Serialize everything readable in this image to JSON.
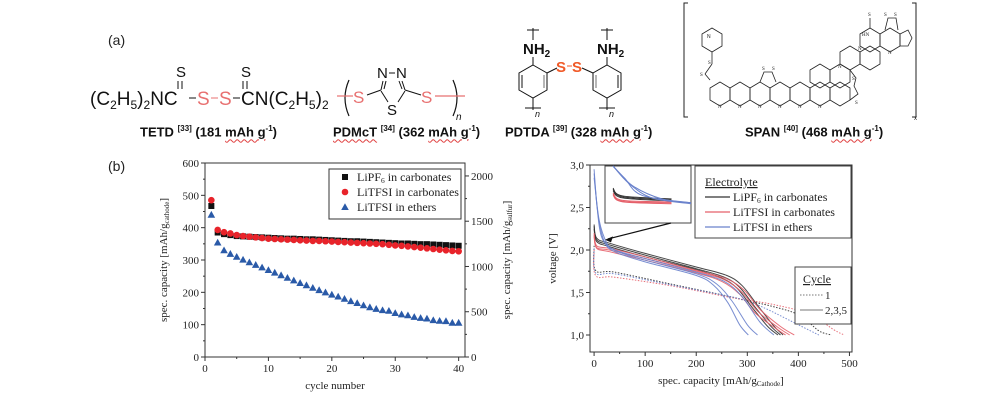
{
  "panel_a": {
    "label": "(a)",
    "molecules": [
      {
        "name": "TETD",
        "ref": "[33]",
        "capacity": "181",
        "unit": "mAh g",
        "exp": "-1",
        "formula_left": "(C2H5)2NC",
        "formula_right": "CN(C2H5)2",
        "atoms": [
          "S",
          "S",
          "S",
          "S"
        ]
      },
      {
        "name": "PDMcT",
        "ref": "[34]",
        "capacity": "362",
        "unit": "mAh g",
        "exp": "-1",
        "atoms": [
          "N",
          "N",
          "S",
          "S",
          "S"
        ],
        "subscript": "n"
      },
      {
        "name": "PDTDA",
        "ref": "[39]",
        "capacity": "328",
        "unit": "mAh g",
        "exp": "-1",
        "atoms": [
          "NH2",
          "NH2",
          "S",
          "S"
        ],
        "subscript": "n"
      },
      {
        "name": "SPAN",
        "ref": "[40]",
        "capacity": "468",
        "unit": "mAh g",
        "exp": "-1"
      }
    ],
    "highlight_color": "#e87070",
    "pdtda_highlight_color": "#f05a28"
  },
  "panel_b": {
    "label": "(b)"
  },
  "chart_data": [
    {
      "type": "scatter",
      "title": "",
      "xlabel": "cycle number",
      "ylabel": "spec. capacity [mAh/g",
      "ylabel_sub": "cathode",
      "ylabel2": "spec. capacity [mAh/g",
      "ylabel2_sub": "sulfur",
      "xlim": [
        0,
        41
      ],
      "ylim": [
        0,
        600
      ],
      "ylim2": [
        0,
        2143
      ],
      "xticks": [
        0,
        10,
        20,
        30,
        40
      ],
      "yticks": [
        0,
        100,
        200,
        300,
        400,
        500,
        600
      ],
      "y2ticks": [
        0,
        500,
        1000,
        1500,
        2000
      ],
      "legend_position": "top-right",
      "grid": false,
      "x": [
        1,
        2,
        3,
        4,
        5,
        6,
        7,
        8,
        9,
        10,
        11,
        12,
        13,
        14,
        15,
        16,
        17,
        18,
        19,
        20,
        21,
        22,
        23,
        24,
        25,
        26,
        27,
        28,
        29,
        30,
        31,
        32,
        33,
        34,
        35,
        36,
        37,
        38,
        39,
        40
      ],
      "series": [
        {
          "name": "LiPF6 in carbonates",
          "label_main": "LiPF",
          "label_sub": "6",
          "label_rest": " in carbonates",
          "marker": "square",
          "color": "#111111",
          "values": [
            467,
            385,
            380,
            377,
            374,
            373,
            372,
            371,
            370,
            369,
            368,
            367,
            366,
            366,
            365,
            364,
            364,
            363,
            362,
            361,
            360,
            359,
            358,
            358,
            357,
            356,
            355,
            354,
            353,
            352,
            351,
            351,
            350,
            349,
            349,
            348,
            347,
            346,
            345,
            344
          ]
        },
        {
          "name": "LiTFSI in carbonates",
          "label_main": "LiTFSI in carbonates",
          "marker": "circle",
          "color": "#e8232a",
          "values": [
            485,
            393,
            386,
            382,
            377,
            374,
            372,
            370,
            368,
            366,
            365,
            364,
            363,
            362,
            361,
            360,
            359,
            359,
            358,
            357,
            356,
            355,
            354,
            353,
            352,
            351,
            350,
            349,
            347,
            345,
            344,
            342,
            340,
            338,
            336,
            334,
            332,
            330,
            328,
            327
          ]
        },
        {
          "name": "LiTFSI in ethers",
          "label_main": "LiTFSI in ethers",
          "marker": "triangle",
          "color": "#2a5aa8",
          "values": [
            440,
            354,
            330,
            319,
            310,
            301,
            293,
            285,
            277,
            269,
            261,
            253,
            245,
            237,
            229,
            222,
            214,
            207,
            200,
            193,
            187,
            180,
            173,
            167,
            160,
            154,
            149,
            145,
            143,
            136,
            132,
            129,
            124,
            121,
            119,
            114,
            112,
            111,
            106,
            106
          ]
        }
      ]
    },
    {
      "type": "line",
      "title": "",
      "xlabel": "spec. capacity [mAh/g",
      "xlabel_sub": "Cathode",
      "ylabel": "voltage [V]",
      "xlim": [
        -8,
        505
      ],
      "ylim": [
        0.8,
        3.0
      ],
      "xticks": [
        0,
        100,
        200,
        300,
        400,
        500
      ],
      "yticks": [
        1.0,
        1.5,
        2.0,
        2.5,
        3.0
      ],
      "ytick_labels": [
        "1,0",
        "1,5",
        "2,0",
        "2,5",
        "3,0"
      ],
      "legend_position": "top-right",
      "legend_electrolyte_title": "Electrolyte",
      "legend_cycle_title": "Cycle",
      "grid": false,
      "electrolytes": [
        {
          "name": "LiPF6 in carbonates",
          "label_main": "LiPF",
          "label_sub": "6",
          "label_rest": " in carbonates",
          "color": "#333333"
        },
        {
          "name": "LiTFSI in carbonates",
          "label_main": "LiTFSI in carbonates",
          "color": "#e5606a"
        },
        {
          "name": "LiTFSI in ethers",
          "label_main": "LiTFSI in ethers",
          "color": "#6a82cc"
        }
      ],
      "cycles": [
        {
          "name": "1",
          "style": "dotted"
        },
        {
          "name": "2,3,5",
          "style": "solid"
        }
      ],
      "series": [
        {
          "electrolyte": 0,
          "cycle": "1",
          "points": [
            [
              0,
              2.05
            ],
            [
              3,
              1.76
            ],
            [
              40,
              1.74
            ],
            [
              150,
              1.6
            ],
            [
              260,
              1.46
            ],
            [
              300,
              1.4
            ],
            [
              340,
              1.35
            ],
            [
              400,
              1.24
            ],
            [
              440,
              1.05
            ],
            [
              465,
              1.0
            ]
          ]
        },
        {
          "electrolyte": 1,
          "cycle": "1",
          "points": [
            [
              0,
              2.0
            ],
            [
              3,
              1.7
            ],
            [
              40,
              1.68
            ],
            [
              150,
              1.58
            ],
            [
              260,
              1.45
            ],
            [
              300,
              1.41
            ],
            [
              350,
              1.36
            ],
            [
              420,
              1.25
            ],
            [
              470,
              1.06
            ],
            [
              490,
              1.0
            ]
          ]
        },
        {
          "electrolyte": 2,
          "cycle": "1",
          "points": [
            [
              0,
              2.02
            ],
            [
              3,
              1.73
            ],
            [
              40,
              1.72
            ],
            [
              150,
              1.59
            ],
            [
              260,
              1.46
            ],
            [
              300,
              1.4
            ],
            [
              340,
              1.3
            ],
            [
              400,
              1.12
            ],
            [
              440,
              1.0
            ]
          ]
        },
        {
          "electrolyte": 0,
          "cycle": "2",
          "points": [
            [
              0,
              2.3
            ],
            [
              5,
              2.14
            ],
            [
              30,
              2.08
            ],
            [
              100,
              1.96
            ],
            [
              200,
              1.8
            ],
            [
              260,
              1.7
            ],
            [
              290,
              1.58
            ],
            [
              320,
              1.35
            ],
            [
              350,
              1.12
            ],
            [
              370,
              1.0
            ]
          ]
        },
        {
          "electrolyte": 0,
          "cycle": "3",
          "points": [
            [
              0,
              2.28
            ],
            [
              5,
              2.12
            ],
            [
              30,
              2.06
            ],
            [
              100,
              1.94
            ],
            [
              200,
              1.78
            ],
            [
              255,
              1.68
            ],
            [
              285,
              1.56
            ],
            [
              315,
              1.33
            ],
            [
              345,
              1.11
            ],
            [
              365,
              1.0
            ]
          ]
        },
        {
          "electrolyte": 0,
          "cycle": "5",
          "points": [
            [
              0,
              2.25
            ],
            [
              5,
              2.1
            ],
            [
              30,
              2.04
            ],
            [
              100,
              1.92
            ],
            [
              200,
              1.77
            ],
            [
              250,
              1.67
            ],
            [
              280,
              1.55
            ],
            [
              310,
              1.32
            ],
            [
              340,
              1.1
            ],
            [
              360,
              1.0
            ]
          ]
        },
        {
          "electrolyte": 1,
          "cycle": "2",
          "points": [
            [
              0,
              2.2
            ],
            [
              5,
              2.05
            ],
            [
              30,
              2.02
            ],
            [
              100,
              1.92
            ],
            [
              200,
              1.76
            ],
            [
              260,
              1.66
            ],
            [
              295,
              1.52
            ],
            [
              325,
              1.3
            ],
            [
              365,
              1.1
            ],
            [
              392,
              1.0
            ]
          ]
        },
        {
          "electrolyte": 1,
          "cycle": "3",
          "points": [
            [
              0,
              2.18
            ],
            [
              5,
              2.03
            ],
            [
              30,
              2.0
            ],
            [
              100,
              1.9
            ],
            [
              200,
              1.75
            ],
            [
              255,
              1.65
            ],
            [
              290,
              1.5
            ],
            [
              320,
              1.28
            ],
            [
              360,
              1.09
            ],
            [
              383,
              1.0
            ]
          ]
        },
        {
          "electrolyte": 1,
          "cycle": "5",
          "points": [
            [
              0,
              2.16
            ],
            [
              5,
              2.02
            ],
            [
              30,
              1.98
            ],
            [
              100,
              1.88
            ],
            [
              200,
              1.73
            ],
            [
              250,
              1.63
            ],
            [
              285,
              1.48
            ],
            [
              315,
              1.26
            ],
            [
              355,
              1.08
            ],
            [
              375,
              1.0
            ]
          ]
        },
        {
          "electrolyte": 2,
          "cycle": "2",
          "points": [
            [
              0,
              2.95
            ],
            [
              6,
              2.5
            ],
            [
              15,
              2.15
            ],
            [
              40,
              2.0
            ],
            [
              100,
              1.88
            ],
            [
              200,
              1.72
            ],
            [
              240,
              1.6
            ],
            [
              270,
              1.4
            ],
            [
              300,
              1.12
            ],
            [
              320,
              1.0
            ]
          ]
        },
        {
          "electrolyte": 2,
          "cycle": "3",
          "points": [
            [
              0,
              2.9
            ],
            [
              8,
              2.4
            ],
            [
              20,
              2.1
            ],
            [
              40,
              1.98
            ],
            [
              100,
              1.86
            ],
            [
              200,
              1.7
            ],
            [
              235,
              1.58
            ],
            [
              262,
              1.38
            ],
            [
              285,
              1.12
            ],
            [
              302,
              1.0
            ]
          ]
        },
        {
          "electrolyte": 2,
          "cycle": "5",
          "points": [
            [
              0,
              2.85
            ],
            [
              10,
              2.35
            ],
            [
              25,
              2.08
            ],
            [
              40,
              2.0
            ],
            [
              100,
              1.9
            ],
            [
              200,
              1.74
            ],
            [
              255,
              1.63
            ],
            [
              290,
              1.45
            ],
            [
              325,
              1.15
            ],
            [
              352,
              1.0
            ]
          ]
        }
      ]
    }
  ]
}
